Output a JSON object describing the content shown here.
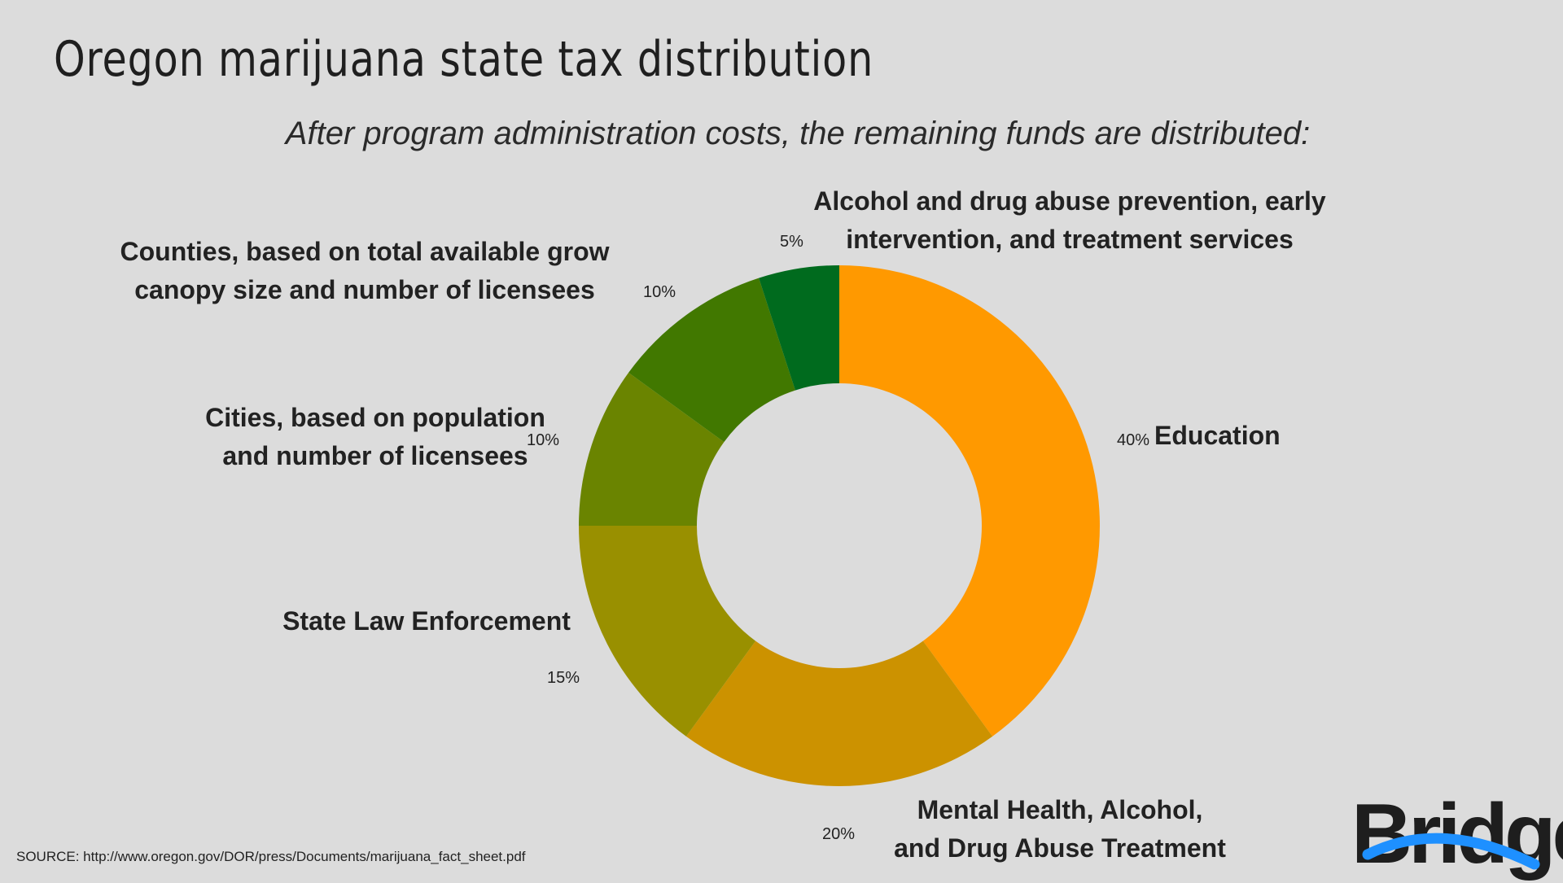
{
  "chart_data": {
    "type": "pie",
    "title": "Oregon marijuana state tax distribution",
    "subtitle": "After program administration costs, the remaining funds are distributed:",
    "categories": [
      "Education",
      "Mental Health, Alcohol, and Drug Abuse Treatment",
      "State Law Enforcement",
      "Cities, based on population and number of licensees",
      "Counties, based on total available grow canopy size and number of licensees",
      "Alcohol and drug abuse prevention, early intervention, and treatment services"
    ],
    "category_lines": [
      [
        "Education"
      ],
      [
        "Mental Health, Alcohol,",
        "and Drug Abuse Treatment"
      ],
      [
        "State Law Enforcement"
      ],
      [
        "Cities, based on population",
        "and number of licensees"
      ],
      [
        "Counties, based on total available grow",
        "canopy size and number of licensees"
      ],
      [
        "Alcohol and drug abuse prevention, early",
        "intervention, and treatment services"
      ]
    ],
    "values": [
      40,
      20,
      15,
      10,
      10,
      5
    ],
    "value_labels": [
      "40%",
      "20%",
      "15%",
      "10%",
      "10%",
      "5%"
    ],
    "colors": [
      "#ff9900",
      "#cc9200",
      "#999000",
      "#6a8400",
      "#417800",
      "#006b1e"
    ],
    "donut": true
  },
  "source": "SOURCE: http://www.oregon.gov/DOR/press/Documents/marijuana_fact_sheet.pdf",
  "logo": {
    "text": "Bridge",
    "accent_color": "#1e90ff"
  }
}
